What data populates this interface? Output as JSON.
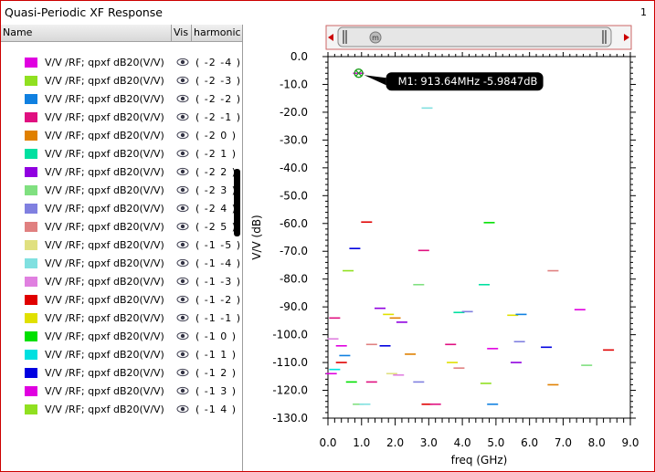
{
  "window": {
    "title": "Quasi-Periodic XF Response",
    "page_number": "1"
  },
  "table": {
    "columns": [
      "Name",
      "Vis",
      "harmonic"
    ],
    "rows": [
      {
        "label": "V/V /RF; qpxf dB20(V/V)",
        "harmonic": "( -2 -4 )",
        "color": "#e000e0"
      },
      {
        "label": "V/V /RF; qpxf dB20(V/V)",
        "harmonic": "( -2 -3 )",
        "color": "#90e020"
      },
      {
        "label": "V/V /RF; qpxf dB20(V/V)",
        "harmonic": "( -2 -2 )",
        "color": "#1080e0"
      },
      {
        "label": "V/V /RF; qpxf dB20(V/V)",
        "harmonic": "( -2 -1 )",
        "color": "#e01080"
      },
      {
        "label": "V/V /RF; qpxf dB20(V/V)",
        "harmonic": "( -2 0 )",
        "color": "#e08000"
      },
      {
        "label": "V/V /RF; qpxf dB20(V/V)",
        "harmonic": "( -2 1 )",
        "color": "#00e0a0"
      },
      {
        "label": "V/V /RF; qpxf dB20(V/V)",
        "harmonic": "( -2 2 )",
        "color": "#9000e0"
      },
      {
        "label": "V/V /RF; qpxf dB20(V/V)",
        "harmonic": "( -2 3 )",
        "color": "#80e080"
      },
      {
        "label": "V/V /RF; qpxf dB20(V/V)",
        "harmonic": "( -2 4 )",
        "color": "#8080e0"
      },
      {
        "label": "V/V /RF; qpxf dB20(V/V)",
        "harmonic": "( -2 5 )",
        "color": "#e08080"
      },
      {
        "label": "V/V /RF; qpxf dB20(V/V)",
        "harmonic": "( -1 -5 )",
        "color": "#e0e080"
      },
      {
        "label": "V/V /RF; qpxf dB20(V/V)",
        "harmonic": "( -1 -4 )",
        "color": "#80e0e0"
      },
      {
        "label": "V/V /RF; qpxf dB20(V/V)",
        "harmonic": "( -1 -3 )",
        "color": "#e080e0"
      },
      {
        "label": "V/V /RF; qpxf dB20(V/V)",
        "harmonic": "( -1 -2 )",
        "color": "#e00000"
      },
      {
        "label": "V/V /RF; qpxf dB20(V/V)",
        "harmonic": "( -1 -1 )",
        "color": "#e0e000"
      },
      {
        "label": "V/V /RF; qpxf dB20(V/V)",
        "harmonic": "( -1 0 )",
        "color": "#00e000"
      },
      {
        "label": "V/V /RF; qpxf dB20(V/V)",
        "harmonic": "( -1 1 )",
        "color": "#00e0e0"
      },
      {
        "label": "V/V /RF; qpxf dB20(V/V)",
        "harmonic": "( -1 2 )",
        "color": "#0000e0"
      },
      {
        "label": "V/V /RF; qpxf dB20(V/V)",
        "harmonic": "( -1 3 )",
        "color": "#e000e0"
      },
      {
        "label": "V/V /RF; qpxf dB20(V/V)",
        "harmonic": "( -1 4 )",
        "color": "#90e020"
      }
    ]
  },
  "marker": {
    "label": "M1: 913.64MHz -5.9847dB",
    "x": 0.91364,
    "y": -5.9847
  },
  "slider": {
    "thumb_label": "m"
  },
  "chart_data": {
    "type": "scatter",
    "title": "Quasi-Periodic XF Response",
    "xlabel": "freq (GHz)",
    "ylabel": "V/V (dB)",
    "xlim": [
      0.0,
      9.0
    ],
    "ylim": [
      -130.0,
      0.0
    ],
    "xticks": [
      "0.0",
      "1.0",
      "2.0",
      "3.0",
      "4.0",
      "5.0",
      "6.0",
      "7.0",
      "8.0",
      "9.0"
    ],
    "yticks": [
      "0.0",
      "-10.0",
      "-20.0",
      "-30.0",
      "-40.0",
      "-50.0",
      "-60.0",
      "-70.0",
      "-80.0",
      "-90.0",
      "-100.0",
      "-110.0",
      "-120.0",
      "-130.0"
    ],
    "grid": true,
    "points": [
      {
        "x": 0.91,
        "y": -6.0,
        "color": "#e000e0"
      },
      {
        "x": 2.95,
        "y": -18.5,
        "color": "#80e0e0"
      },
      {
        "x": 1.15,
        "y": -59.5,
        "color": "#e00000"
      },
      {
        "x": 4.8,
        "y": -59.7,
        "color": "#00e000"
      },
      {
        "x": 0.8,
        "y": -69.0,
        "color": "#0000e0"
      },
      {
        "x": 2.85,
        "y": -69.7,
        "color": "#e01080"
      },
      {
        "x": 0.6,
        "y": -77.0,
        "color": "#90e020"
      },
      {
        "x": 6.7,
        "y": -77.0,
        "color": "#e08080"
      },
      {
        "x": 2.7,
        "y": -82.0,
        "color": "#80e080"
      },
      {
        "x": 4.65,
        "y": -82.0,
        "color": "#00e0a0"
      },
      {
        "x": 1.55,
        "y": -90.5,
        "color": "#9000e0"
      },
      {
        "x": 7.5,
        "y": -91.0,
        "color": "#e000e0"
      },
      {
        "x": 1.8,
        "y": -92.7,
        "color": "#e0e000"
      },
      {
        "x": 3.9,
        "y": -92.0,
        "color": "#00e0a0"
      },
      {
        "x": 4.15,
        "y": -91.7,
        "color": "#8080e0"
      },
      {
        "x": 5.5,
        "y": -93.0,
        "color": "#e0e000"
      },
      {
        "x": 5.75,
        "y": -92.7,
        "color": "#1080e0"
      },
      {
        "x": 2.0,
        "y": -94.0,
        "color": "#e08000"
      },
      {
        "x": 2.2,
        "y": -95.5,
        "color": "#9000e0"
      },
      {
        "x": 0.2,
        "y": -94.0,
        "color": "#e01080"
      },
      {
        "x": 0.15,
        "y": -101.5,
        "color": "#e080e0"
      },
      {
        "x": 0.4,
        "y": -104.0,
        "color": "#e000e0"
      },
      {
        "x": 0.5,
        "y": -107.5,
        "color": "#1080e0"
      },
      {
        "x": 1.3,
        "y": -103.5,
        "color": "#e08080"
      },
      {
        "x": 1.7,
        "y": -104.0,
        "color": "#0000e0"
      },
      {
        "x": 2.45,
        "y": -107.0,
        "color": "#e08000"
      },
      {
        "x": 3.65,
        "y": -103.5,
        "color": "#e01080"
      },
      {
        "x": 4.9,
        "y": -105.0,
        "color": "#e000e0"
      },
      {
        "x": 5.7,
        "y": -102.5,
        "color": "#8080e0"
      },
      {
        "x": 6.5,
        "y": -104.5,
        "color": "#0000e0"
      },
      {
        "x": 8.35,
        "y": -105.5,
        "color": "#e00000"
      },
      {
        "x": 0.4,
        "y": -110.0,
        "color": "#e00000"
      },
      {
        "x": 3.7,
        "y": -110.0,
        "color": "#e0e000"
      },
      {
        "x": 5.6,
        "y": -110.0,
        "color": "#9000e0"
      },
      {
        "x": 7.7,
        "y": -111.0,
        "color": "#80e080"
      },
      {
        "x": 0.1,
        "y": -114.0,
        "color": "#e000e0"
      },
      {
        "x": 0.2,
        "y": -112.5,
        "color": "#00e0e0"
      },
      {
        "x": 0.7,
        "y": -117.0,
        "color": "#00e000"
      },
      {
        "x": 1.3,
        "y": -117.0,
        "color": "#e01080"
      },
      {
        "x": 1.9,
        "y": -114.0,
        "color": "#e0e080"
      },
      {
        "x": 2.1,
        "y": -114.5,
        "color": "#e080e0"
      },
      {
        "x": 2.7,
        "y": -117.0,
        "color": "#8080e0"
      },
      {
        "x": 3.9,
        "y": -112.0,
        "color": "#e08080"
      },
      {
        "x": 4.7,
        "y": -117.5,
        "color": "#90e020"
      },
      {
        "x": 6.7,
        "y": -118.0,
        "color": "#e08000"
      },
      {
        "x": 0.9,
        "y": -125.0,
        "color": "#80e080"
      },
      {
        "x": 1.1,
        "y": -125.0,
        "color": "#80e0e0"
      },
      {
        "x": 2.95,
        "y": -125.0,
        "color": "#e00000"
      },
      {
        "x": 3.2,
        "y": -125.0,
        "color": "#e01080"
      },
      {
        "x": 4.9,
        "y": -125.0,
        "color": "#1080e0"
      }
    ]
  }
}
